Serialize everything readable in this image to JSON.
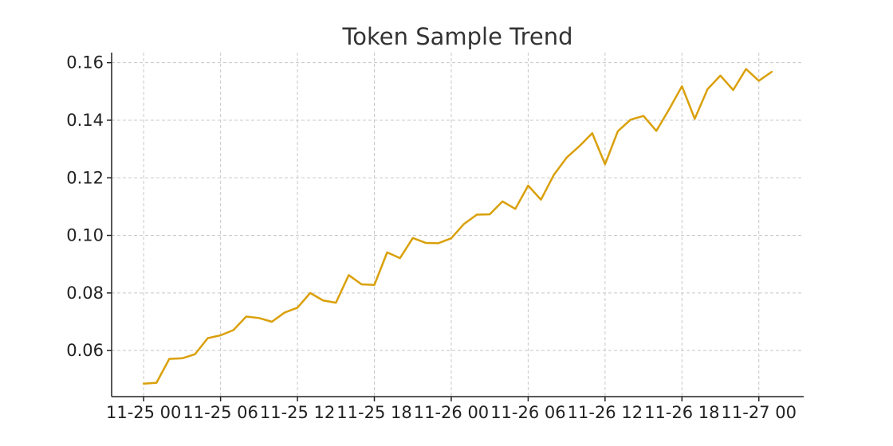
{
  "chart_data": {
    "type": "line",
    "title": "Token Sample Trend",
    "xlabel": "",
    "ylabel": "",
    "x_is_time": true,
    "x": [
      "2023-11-25 00:00",
      "2023-11-25 01:00",
      "2023-11-25 02:00",
      "2023-11-25 03:00",
      "2023-11-25 04:00",
      "2023-11-25 05:00",
      "2023-11-25 06:00",
      "2023-11-25 07:00",
      "2023-11-25 08:00",
      "2023-11-25 09:00",
      "2023-11-25 10:00",
      "2023-11-25 11:00",
      "2023-11-25 12:00",
      "2023-11-25 13:00",
      "2023-11-25 14:00",
      "2023-11-25 15:00",
      "2023-11-25 16:00",
      "2023-11-25 17:00",
      "2023-11-25 18:00",
      "2023-11-25 19:00",
      "2023-11-25 20:00",
      "2023-11-25 21:00",
      "2023-11-25 22:00",
      "2023-11-25 23:00",
      "2023-11-26 00:00",
      "2023-11-26 01:00",
      "2023-11-26 02:00",
      "2023-11-26 03:00",
      "2023-11-26 04:00",
      "2023-11-26 05:00",
      "2023-11-26 06:00",
      "2023-11-26 07:00",
      "2023-11-26 08:00",
      "2023-11-26 09:00",
      "2023-11-26 10:00",
      "2023-11-26 11:00",
      "2023-11-26 12:00",
      "2023-11-26 13:00",
      "2023-11-26 14:00",
      "2023-11-26 15:00",
      "2023-11-26 16:00",
      "2023-11-26 17:00",
      "2023-11-26 18:00",
      "2023-11-26 19:00",
      "2023-11-26 20:00",
      "2023-11-26 21:00",
      "2023-11-26 22:00",
      "2023-11-26 23:00",
      "2023-11-27 00:00",
      "2023-11-27 01:00"
    ],
    "series": [
      {
        "color": "#DAA00A",
        "values": [
          0.0485,
          0.0488,
          0.0571,
          0.0573,
          0.0587,
          0.0643,
          0.0653,
          0.0671,
          0.0718,
          0.0713,
          0.07,
          0.0732,
          0.0749,
          0.08,
          0.0774,
          0.0766,
          0.0862,
          0.083,
          0.0828,
          0.0941,
          0.0921,
          0.0991,
          0.0974,
          0.0973,
          0.099,
          0.104,
          0.1072,
          0.1073,
          0.1118,
          0.1092,
          0.1173,
          0.1124,
          0.121,
          0.127,
          0.131,
          0.1355,
          0.1247,
          0.1362,
          0.1402,
          0.1415,
          0.1363,
          0.1438,
          0.1518,
          0.1405,
          0.1508,
          0.1555,
          0.1505,
          0.1578,
          0.1537,
          0.1568
        ]
      }
    ],
    "x_ticks": [
      "11-25 00",
      "11-25 06",
      "11-25 12",
      "11-25 18",
      "11-26 00",
      "11-26 06",
      "11-26 12",
      "11-26 18",
      "11-27 00"
    ],
    "x_tick_values": [
      "2023-11-25 00:00",
      "2023-11-25 06:00",
      "2023-11-25 12:00",
      "2023-11-25 18:00",
      "2023-11-26 00:00",
      "2023-11-26 06:00",
      "2023-11-26 12:00",
      "2023-11-26 18:00",
      "2023-11-27 00:00"
    ],
    "xlim": [
      "2023-11-24 21:30",
      "2023-11-27 03:30"
    ],
    "y_ticks": [
      0.06,
      0.08,
      0.1,
      0.12,
      0.14,
      0.16
    ],
    "y_tick_labels": [
      "0.06",
      "0.08",
      "0.10",
      "0.12",
      "0.14",
      "0.16"
    ],
    "ylim": [
      0.044,
      0.1635
    ],
    "grid": true,
    "legend": "none"
  }
}
